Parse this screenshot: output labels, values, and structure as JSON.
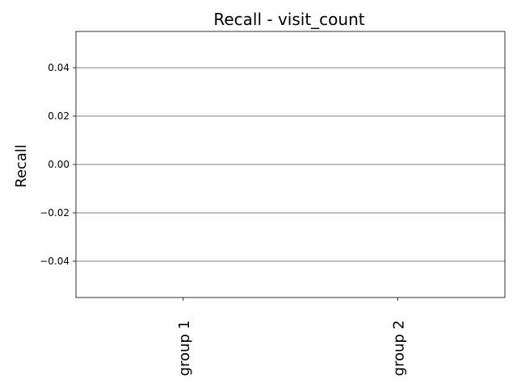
{
  "chart_data": {
    "type": "bar",
    "title": "Recall - visit_count",
    "xlabel": "",
    "ylabel": "Recall",
    "categories": [
      "group 1",
      "group 2"
    ],
    "values": [
      0,
      0
    ],
    "ylim": [
      -0.055,
      0.055
    ],
    "yticks": [
      -0.04,
      -0.02,
      0.0,
      0.02,
      0.04
    ],
    "ytick_labels": [
      "−0.04",
      "−0.02",
      "0.00",
      "0.02",
      "0.04"
    ],
    "grid": true,
    "grid_axis": "y",
    "legend": "none",
    "colors": {
      "background": "#ffffff",
      "axis": "#000000",
      "grid": "#000000",
      "bar": "#1f77b4"
    }
  }
}
